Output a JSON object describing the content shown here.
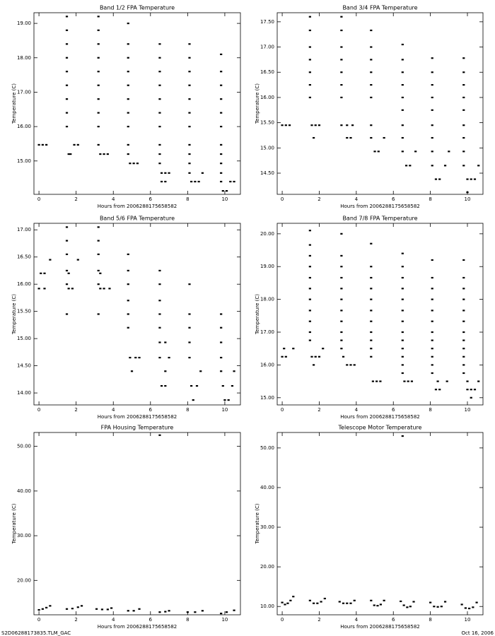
{
  "chart_data": [
    {
      "type": "scatter",
      "title": "Band 1/2 FPA Temperature",
      "x_label": "Hours from 2006288175658582",
      "y_label": "Temperature (C)",
      "color": "#000000",
      "xlim": [
        -0.27,
        10.84
      ],
      "ylim": [
        14.03,
        19.31
      ],
      "xticks": [
        0,
        2,
        4,
        6,
        8,
        10
      ],
      "yticks": [
        {
          "value": 15,
          "label": "15.00"
        },
        {
          "value": 16,
          "label": "16.00"
        },
        {
          "value": 17,
          "label": "17.00"
        },
        {
          "value": 18,
          "label": "18.00"
        },
        {
          "value": 19,
          "label": "19.00"
        }
      ],
      "x": [
        0,
        0.2,
        0.4,
        1.5,
        1.5,
        1.5,
        1.5,
        1.5,
        1.5,
        1.5,
        1.5,
        1.5,
        1.6,
        1.7,
        1.9,
        2.1,
        3.2,
        3.2,
        3.2,
        3.2,
        3.2,
        3.2,
        3.2,
        3.2,
        3.2,
        3.2,
        3.3,
        3.5,
        3.7,
        4.8,
        4.8,
        4.8,
        4.8,
        4.8,
        4.8,
        4.8,
        4.8,
        4.8,
        4.8,
        4.9,
        5.1,
        5.3,
        6.5,
        6.5,
        6.5,
        6.5,
        6.5,
        6.5,
        6.5,
        6.5,
        6.5,
        6.5,
        6.6,
        6.8,
        7.0,
        6.6,
        6.8,
        8.1,
        8.1,
        8.1,
        8.1,
        8.1,
        8.1,
        8.1,
        8.1,
        8.1,
        8.1,
        8.1,
        8.2,
        8.4,
        8.6,
        8.8,
        9.8,
        9.8,
        9.8,
        9.8,
        9.8,
        9.8,
        9.8,
        9.8,
        9.8,
        9.8,
        9.8,
        9.9,
        10.1,
        10.3,
        10.5
      ],
      "values": [
        15.47,
        15.47,
        15.47,
        16.0,
        16.4,
        16.8,
        17.2,
        17.6,
        18.0,
        18.4,
        18.8,
        19.2,
        15.2,
        15.2,
        15.47,
        15.47,
        15.47,
        16.0,
        16.4,
        16.8,
        17.2,
        17.6,
        18.0,
        18.4,
        18.8,
        19.2,
        15.2,
        15.2,
        15.2,
        15.2,
        15.47,
        16.0,
        16.4,
        16.8,
        17.2,
        17.6,
        18.0,
        18.4,
        19.0,
        14.93,
        14.93,
        14.93,
        14.93,
        15.2,
        15.47,
        16.0,
        16.4,
        16.8,
        17.2,
        17.6,
        18.0,
        18.4,
        14.65,
        14.65,
        14.65,
        14.4,
        14.4,
        14.65,
        14.93,
        15.2,
        15.47,
        16.0,
        16.4,
        16.8,
        17.2,
        17.6,
        18.0,
        18.4,
        14.4,
        14.4,
        14.4,
        14.65,
        14.4,
        14.65,
        14.93,
        15.2,
        15.47,
        16.0,
        16.4,
        16.8,
        17.2,
        17.6,
        18.1,
        14.13,
        14.13,
        14.4,
        14.4
      ]
    },
    {
      "type": "scatter",
      "title": "Band 3/4 FPA Temperature",
      "x_label": "Hours from 2006288175658582",
      "y_label": "Temperature (C)",
      "color": "#000000",
      "xlim": [
        -0.27,
        10.84
      ],
      "ylim": [
        14.08,
        17.68
      ],
      "xticks": [
        0,
        2,
        4,
        6,
        8,
        10
      ],
      "yticks": [
        {
          "value": 14.5,
          "label": "14.50"
        },
        {
          "value": 15,
          "label": "15.00"
        },
        {
          "value": 15.5,
          "label": "15.50"
        },
        {
          "value": 16,
          "label": "16.00"
        },
        {
          "value": 16.5,
          "label": "16.50"
        },
        {
          "value": 17,
          "label": "17.00"
        },
        {
          "value": 17.5,
          "label": "17.50"
        }
      ],
      "x": [
        0,
        0.2,
        0.4,
        1.5,
        1.5,
        1.5,
        1.5,
        1.5,
        1.5,
        1.5,
        1.6,
        1.8,
        2.0,
        1.7,
        3.2,
        3.2,
        3.2,
        3.2,
        3.2,
        3.2,
        3.2,
        3.2,
        3.5,
        3.7,
        3.5,
        3.8,
        4.8,
        4.8,
        4.8,
        4.8,
        4.8,
        4.8,
        4.8,
        4.8,
        5.0,
        5.2,
        5.5,
        6.5,
        6.5,
        6.5,
        6.5,
        6.5,
        6.5,
        6.5,
        6.5,
        6.5,
        6.7,
        6.9,
        7.2,
        8.1,
        8.1,
        8.1,
        8.1,
        8.1,
        8.1,
        8.1,
        8.1,
        8.1,
        8.3,
        8.5,
        8.8,
        9.0,
        9.8,
        9.8,
        9.8,
        9.8,
        9.8,
        9.8,
        9.8,
        9.8,
        9.8,
        10.0,
        10.2,
        10.4,
        10.0,
        10.6
      ],
      "values": [
        15.45,
        15.45,
        15.45,
        16.0,
        16.25,
        16.5,
        16.75,
        17.0,
        17.33,
        17.6,
        15.45,
        15.45,
        15.45,
        15.2,
        15.45,
        16.0,
        16.25,
        16.5,
        16.75,
        17.0,
        17.33,
        17.6,
        15.2,
        15.2,
        15.45,
        15.45,
        15.2,
        15.45,
        16.0,
        16.25,
        16.5,
        16.75,
        17.0,
        17.33,
        14.93,
        14.93,
        15.2,
        14.93,
        15.2,
        15.45,
        15.75,
        16.0,
        16.25,
        16.5,
        16.75,
        17.05,
        14.65,
        14.65,
        14.93,
        14.65,
        14.93,
        15.2,
        15.45,
        15.75,
        16.0,
        16.25,
        16.5,
        16.78,
        14.38,
        14.38,
        14.65,
        14.93,
        14.65,
        14.93,
        15.2,
        15.45,
        15.75,
        16.0,
        16.25,
        16.5,
        16.78,
        14.38,
        14.38,
        14.38,
        14.12,
        14.65
      ]
    },
    {
      "type": "scatter",
      "title": "Band 5/6 FPA Temperature",
      "x_label": "Hours from 2006288175658582",
      "y_label": "Temperature (C)",
      "color": "#000000",
      "xlim": [
        -0.27,
        10.84
      ],
      "ylim": [
        13.78,
        17.12
      ],
      "xticks": [
        0,
        2,
        4,
        6,
        8,
        10
      ],
      "yticks": [
        {
          "value": 14,
          "label": "14.00"
        },
        {
          "value": 14.5,
          "label": "14.50"
        },
        {
          "value": 15,
          "label": "15.00"
        },
        {
          "value": 15.5,
          "label": "15.50"
        },
        {
          "value": 16,
          "label": "16.00"
        },
        {
          "value": 16.5,
          "label": "16.50"
        },
        {
          "value": 17,
          "label": "17.00"
        }
      ],
      "x": [
        0,
        0.3,
        0.1,
        0.3,
        0.6,
        1.5,
        1.5,
        1.5,
        1.5,
        1.5,
        1.5,
        1.6,
        1.6,
        1.8,
        2.1,
        3.2,
        3.2,
        3.2,
        3.2,
        3.2,
        3.2,
        3.3,
        3.3,
        3.5,
        3.8,
        4.8,
        4.8,
        4.8,
        4.8,
        4.8,
        4.8,
        4.9,
        5.0,
        5.2,
        5.4,
        6.5,
        6.5,
        6.5,
        6.5,
        6.5,
        6.5,
        6.5,
        6.6,
        6.8,
        6.8,
        7.0,
        6.8,
        8.1,
        8.1,
        8.1,
        8.1,
        8.1,
        8.2,
        8.3,
        8.5,
        8.7,
        9.8,
        9.8,
        9.8,
        9.8,
        9.8,
        9.9,
        10.0,
        10.2,
        10.4,
        10.5
      ],
      "values": [
        15.92,
        15.92,
        16.2,
        16.2,
        16.45,
        15.45,
        16.0,
        16.25,
        16.55,
        16.8,
        17.05,
        16.2,
        15.92,
        15.92,
        16.45,
        15.45,
        16.0,
        16.25,
        16.55,
        16.8,
        17.05,
        16.2,
        15.92,
        15.92,
        15.92,
        15.2,
        15.45,
        15.7,
        16.0,
        16.25,
        16.55,
        14.65,
        14.4,
        14.65,
        14.65,
        14.65,
        14.93,
        15.2,
        15.45,
        15.7,
        16.0,
        16.25,
        14.13,
        14.13,
        14.4,
        14.65,
        14.93,
        14.65,
        14.93,
        15.2,
        15.45,
        16.0,
        14.13,
        13.87,
        14.13,
        14.4,
        14.4,
        14.65,
        14.93,
        15.2,
        15.45,
        14.13,
        13.87,
        13.87,
        14.13,
        14.4
      ]
    },
    {
      "type": "scatter",
      "title": "Band 7/8 FPA Temperature",
      "x_label": "Hours from 2006288175658582",
      "y_label": "Temperature (C)",
      "color": "#000000",
      "xlim": [
        -0.27,
        10.84
      ],
      "ylim": [
        14.78,
        20.32
      ],
      "xticks": [
        0,
        2,
        4,
        6,
        8,
        10
      ],
      "yticks": [
        {
          "value": 15,
          "label": "15.00"
        },
        {
          "value": 16,
          "label": "16.00"
        },
        {
          "value": 17,
          "label": "17.00"
        },
        {
          "value": 18,
          "label": "18.00"
        },
        {
          "value": 19,
          "label": "19.00"
        },
        {
          "value": 20,
          "label": "20.00"
        }
      ],
      "x": [
        0,
        0.2,
        0.1,
        0.6,
        1.5,
        1.5,
        1.5,
        1.5,
        1.5,
        1.5,
        1.5,
        1.5,
        1.5,
        1.5,
        1.5,
        1.6,
        1.8,
        2.0,
        1.7,
        2.2,
        3.2,
        3.2,
        3.2,
        3.2,
        3.2,
        3.2,
        3.2,
        3.2,
        3.2,
        3.2,
        3.2,
        3.3,
        3.5,
        3.7,
        3.9,
        4.8,
        4.8,
        4.8,
        4.8,
        4.8,
        4.8,
        4.8,
        4.8,
        4.8,
        4.8,
        4.8,
        4.9,
        5.1,
        5.3,
        6.5,
        6.5,
        6.5,
        6.5,
        6.5,
        6.5,
        6.5,
        6.5,
        6.5,
        6.5,
        6.5,
        6.5,
        6.5,
        6.6,
        6.8,
        7.0,
        8.1,
        8.1,
        8.1,
        8.1,
        8.1,
        8.1,
        8.1,
        8.1,
        8.1,
        8.1,
        8.1,
        8.1,
        8.3,
        8.5,
        8.4,
        8.9,
        9.8,
        9.8,
        9.8,
        9.8,
        9.8,
        9.8,
        9.8,
        9.8,
        9.8,
        9.8,
        9.8,
        9.8,
        10.0,
        10.2,
        10.4,
        10.2,
        10.6,
        10.0
      ],
      "values": [
        16.25,
        16.25,
        16.5,
        16.5,
        16.75,
        17.0,
        17.33,
        17.66,
        18.0,
        18.33,
        18.66,
        19.0,
        19.33,
        19.66,
        20.1,
        16.25,
        16.25,
        16.25,
        16.0,
        16.5,
        16.5,
        16.75,
        17.0,
        17.33,
        17.66,
        18.0,
        18.33,
        18.66,
        19.0,
        19.33,
        20.0,
        16.25,
        16.0,
        16.0,
        16.0,
        16.25,
        16.5,
        16.75,
        17.0,
        17.33,
        17.66,
        18.0,
        18.33,
        18.66,
        19.0,
        19.7,
        15.5,
        15.5,
        15.5,
        15.75,
        16.0,
        16.25,
        16.5,
        16.75,
        17.0,
        17.33,
        17.66,
        18.0,
        18.33,
        18.66,
        19.0,
        19.4,
        15.5,
        15.5,
        15.5,
        15.75,
        16.0,
        16.25,
        16.5,
        16.75,
        17.0,
        17.33,
        17.66,
        18.0,
        18.33,
        18.66,
        19.2,
        15.25,
        15.25,
        15.5,
        15.5,
        15.75,
        16.0,
        16.25,
        16.5,
        16.75,
        17.0,
        17.33,
        17.66,
        18.0,
        18.33,
        18.66,
        19.2,
        15.25,
        15.25,
        15.25,
        15.0,
        15.5,
        15.5
      ]
    },
    {
      "type": "scatter",
      "title": "FPA Housing Temperature",
      "x_label": "Hours from 2006288175658582",
      "y_label": "Temperature (C)",
      "color": "#000000",
      "xlim": [
        -0.27,
        10.84
      ],
      "ylim": [
        12.3,
        53.1
      ],
      "xticks": [
        0,
        2,
        4,
        6,
        8,
        10
      ],
      "yticks": [
        {
          "value": 20,
          "label": "20.00"
        },
        {
          "value": 30,
          "label": "30.00"
        },
        {
          "value": 40,
          "label": "40.00"
        },
        {
          "value": 50,
          "label": "50.00"
        }
      ],
      "x": [
        0,
        0.2,
        0.4,
        0.6,
        1.5,
        1.8,
        2.1,
        2.3,
        3.1,
        3.4,
        3.7,
        3.9,
        4.8,
        5.1,
        5.4,
        6.5,
        6.8,
        7.0,
        8.0,
        8.4,
        8.8,
        9.8,
        10.1,
        10.5,
        6.5
      ],
      "values": [
        13.4,
        13.6,
        13.9,
        14.3,
        13.6,
        13.7,
        14.0,
        14.3,
        13.6,
        13.5,
        13.5,
        13.8,
        13.2,
        13.2,
        13.6,
        12.9,
        13.0,
        13.2,
        12.9,
        12.9,
        13.2,
        12.6,
        12.9,
        13.3,
        52.5
      ]
    },
    {
      "type": "scatter",
      "title": "Telescope Motor Temperature",
      "x_label": "Hours from 2006288175658582",
      "y_label": "Temperature (C)",
      "color": "#000000",
      "xlim": [
        -0.27,
        10.84
      ],
      "ylim": [
        7.9,
        53.9
      ],
      "xticks": [
        0,
        2,
        4,
        6,
        8,
        10
      ],
      "yticks": [
        {
          "value": 10,
          "label": "10.00"
        },
        {
          "value": 20,
          "label": "20.00"
        },
        {
          "value": 30,
          "label": "30.00"
        },
        {
          "value": 40,
          "label": "40.00"
        },
        {
          "value": 50,
          "label": "50.00"
        }
      ],
      "x": [
        0,
        0.15,
        0.3,
        0.45,
        0.6,
        1.5,
        1.7,
        1.9,
        2.1,
        2.3,
        3.1,
        3.3,
        3.5,
        3.7,
        3.9,
        4.8,
        4.97,
        5.15,
        5.32,
        5.5,
        6.4,
        6.57,
        6.75,
        6.92,
        7.1,
        8.0,
        8.2,
        8.4,
        8.6,
        8.8,
        9.7,
        9.9,
        10.1,
        10.3,
        10.5,
        6.5
      ],
      "values": [
        11.0,
        10.5,
        10.8,
        11.5,
        12.5,
        11.5,
        10.8,
        10.8,
        11.2,
        12.0,
        11.2,
        10.8,
        10.8,
        10.8,
        11.5,
        11.5,
        10.3,
        10.2,
        10.5,
        11.5,
        11.3,
        10.3,
        9.8,
        10.0,
        11.2,
        11.0,
        10.0,
        9.9,
        10.0,
        11.2,
        10.5,
        9.6,
        9.5,
        9.8,
        11.0,
        53.0
      ]
    }
  ],
  "footer": {
    "left": "S2D06288173835.TLM_GAC",
    "right": "Oct 16, 2006"
  }
}
